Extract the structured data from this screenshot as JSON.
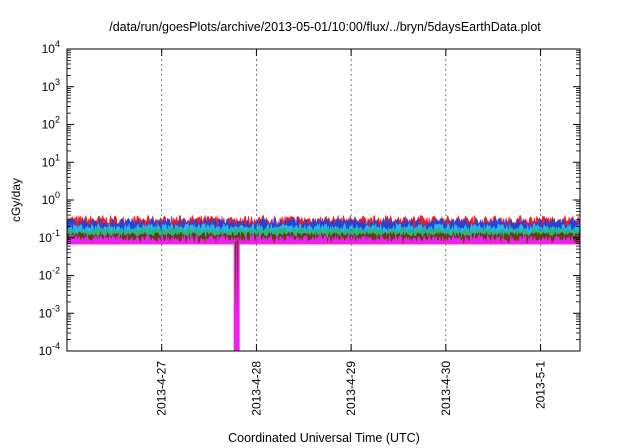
{
  "chart_data": {
    "type": "area",
    "title": "/data/run/goesPlots/archive/2013-05-01/10:00/flux/../bryn/5daysEarthData.plot",
    "xlabel": "Coordinated Universal Time (UTC)",
    "ylabel": "cGy/day",
    "yscale": "log",
    "ylim": [
      0.0001,
      10000
    ],
    "y_ticks": [
      {
        "base": "10",
        "exp": "4",
        "value": 10000
      },
      {
        "base": "10",
        "exp": "3",
        "value": 1000
      },
      {
        "base": "10",
        "exp": "2",
        "value": 100
      },
      {
        "base": "10",
        "exp": "1",
        "value": 10
      },
      {
        "base": "10",
        "exp": "0",
        "value": 1
      },
      {
        "base": "10",
        "exp": "-1",
        "value": 0.1
      },
      {
        "base": "10",
        "exp": "-2",
        "value": 0.01
      },
      {
        "base": "10",
        "exp": "-3",
        "value": 0.001
      },
      {
        "base": "10",
        "exp": "-4",
        "value": 0.0001
      }
    ],
    "xlim": [
      "2013-04-26 00:00",
      "2013-05-01 10:00"
    ],
    "x_ticks": [
      "2013-4-27",
      "2013-4-28",
      "2013-4-29",
      "2013-4-30",
      "2013-5-1"
    ],
    "grid": "x-dashed",
    "legend": "none",
    "series": [
      {
        "color": "#e8202a",
        "typical_value": 0.3,
        "low": 0.22,
        "high": 0.4
      },
      {
        "color": "#2244dd",
        "typical_value": 0.25,
        "low": 0.18,
        "high": 0.34
      },
      {
        "color": "#28b8ee",
        "typical_value": 0.19,
        "low": 0.15,
        "high": 0.25
      },
      {
        "color": "#2ab67a",
        "typical_value": 0.16,
        "low": 0.13,
        "high": 0.2
      },
      {
        "color": "#6a3a10",
        "typical_value": 0.12,
        "low": 0.1,
        "high": 0.14
      },
      {
        "color": "#ee22ee",
        "typical_value": 0.095,
        "low": 0.07,
        "high": 0.12,
        "dropouts": [
          {
            "x": "2013-04-27 18:45",
            "y": 0.0001
          },
          {
            "x": "2013-04-27 19:15",
            "y": 0.0001
          }
        ]
      }
    ]
  }
}
